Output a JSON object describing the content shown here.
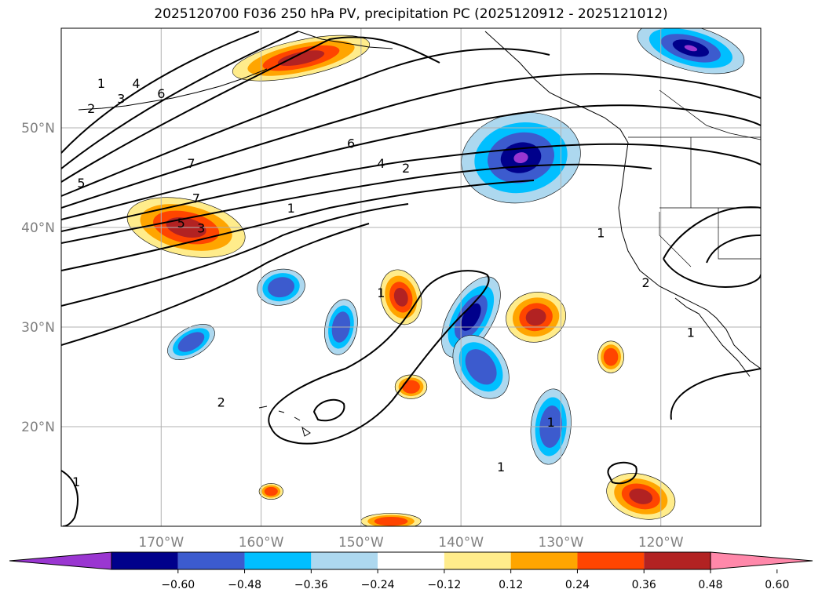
{
  "title": "2025120700 F036 250 hPa PV, precipitation PC (2025120912 - 2025121012)",
  "map": {
    "lon_range": [
      -180,
      -110
    ],
    "lat_range": [
      10,
      60
    ],
    "latitude_labels": [
      "50°N",
      "40°N",
      "30°N",
      "20°N"
    ],
    "longitude_labels": [
      "170°W",
      "160°W",
      "150°W",
      "140°W",
      "130°W",
      "120°W"
    ],
    "gridlines": true
  },
  "pv_contour_labels": [
    {
      "text": "1",
      "lon": -176.0,
      "lat": 54.0
    },
    {
      "text": "2",
      "lon": -177.0,
      "lat": 51.5
    },
    {
      "text": "3",
      "lon": -174.0,
      "lat": 52.5
    },
    {
      "text": "4",
      "lon": -172.5,
      "lat": 54.0
    },
    {
      "text": "6",
      "lon": -170.0,
      "lat": 53.0
    },
    {
      "text": "5",
      "lon": -178.0,
      "lat": 44.0
    },
    {
      "text": "7",
      "lon": -167.0,
      "lat": 46.0
    },
    {
      "text": "7",
      "lon": -166.5,
      "lat": 42.5
    },
    {
      "text": "5",
      "lon": -168.0,
      "lat": 40.0
    },
    {
      "text": "3",
      "lon": -166.0,
      "lat": 39.5
    },
    {
      "text": "1",
      "lon": -157.0,
      "lat": 41.5
    },
    {
      "text": "6",
      "lon": -151.0,
      "lat": 48.0
    },
    {
      "text": "4",
      "lon": -148.0,
      "lat": 46.0
    },
    {
      "text": "2",
      "lon": -145.5,
      "lat": 45.5
    },
    {
      "text": "1",
      "lon": -126.0,
      "lat": 39.0
    },
    {
      "text": "2",
      "lon": -121.5,
      "lat": 34.0
    },
    {
      "text": "1",
      "lon": -117.0,
      "lat": 29.0
    },
    {
      "text": "2",
      "lon": -164.0,
      "lat": 22.0
    },
    {
      "text": "1",
      "lon": -148.0,
      "lat": 33.0
    },
    {
      "text": "1",
      "lon": -131.0,
      "lat": 20.0
    },
    {
      "text": "1",
      "lon": -178.5,
      "lat": 14.0
    },
    {
      "text": "1",
      "lon": -136.0,
      "lat": 15.5
    }
  ],
  "colorbar": {
    "colors": [
      "#9a36d1",
      "#00008b",
      "#3c5bce",
      "#00bfff",
      "#add8ef",
      "#ffffff",
      "#ffec8b",
      "#ffa500",
      "#ff4500",
      "#b22222",
      "#ff88aa"
    ],
    "tick_labels": [
      "−0.60",
      "−0.48",
      "−0.36",
      "−0.24",
      "−0.12",
      "0.12",
      "0.24",
      "0.36",
      "0.48",
      "0.60"
    ],
    "ticks": [
      -0.6,
      -0.48,
      -0.36,
      -0.24,
      -0.12,
      0.12,
      0.24,
      0.36,
      0.48,
      0.6
    ],
    "extend": "both"
  },
  "precip_pc_features": [
    {
      "sign": "positive",
      "max": 0.48,
      "lon": -167.5,
      "lat": 40.0
    },
    {
      "sign": "positive",
      "max": 0.48,
      "lon": -156.0,
      "lat": 57.0
    },
    {
      "sign": "positive",
      "max": 0.48,
      "lon": -146.0,
      "lat": 33.0
    },
    {
      "sign": "positive",
      "max": 0.48,
      "lon": -132.5,
      "lat": 31.0
    },
    {
      "sign": "positive",
      "max": 0.48,
      "lon": -122.0,
      "lat": 13.0
    },
    {
      "sign": "positive",
      "max": 0.36,
      "lon": -125.0,
      "lat": 27.0
    },
    {
      "sign": "positive",
      "max": 0.36,
      "lon": -145.0,
      "lat": 24.0
    },
    {
      "sign": "positive",
      "max": 0.36,
      "lon": -159.0,
      "lat": 13.5
    },
    {
      "sign": "positive",
      "max": 0.36,
      "lon": -147.0,
      "lat": 10.5
    },
    {
      "sign": "negative",
      "min": -0.6,
      "lon": -134.0,
      "lat": 47.0
    },
    {
      "sign": "negative",
      "min": -0.6,
      "lon": -117.0,
      "lat": 58.0
    },
    {
      "sign": "negative",
      "min": -0.48,
      "lon": -139.0,
      "lat": 31.0
    },
    {
      "sign": "negative",
      "min": -0.36,
      "lon": -158.0,
      "lat": 34.0
    },
    {
      "sign": "negative",
      "min": -0.36,
      "lon": -152.0,
      "lat": 30.0
    },
    {
      "sign": "negative",
      "min": -0.36,
      "lon": -167.0,
      "lat": 28.5
    },
    {
      "sign": "negative",
      "min": -0.36,
      "lon": -131.0,
      "lat": 20.0
    },
    {
      "sign": "negative",
      "min": -0.36,
      "lon": -138.0,
      "lat": 26.0
    }
  ]
}
